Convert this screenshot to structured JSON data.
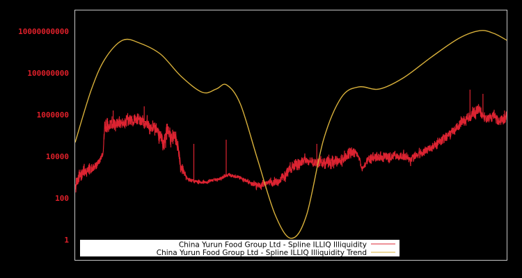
{
  "chart_data": {
    "type": "line",
    "title": "",
    "xlabel": "",
    "ylabel": "",
    "y_scale": "log",
    "ylim": [
      0.1,
      100000000000
    ],
    "grid": false,
    "legend_position": "bottom-left inside plot",
    "background": "#000000",
    "frame_color": "#c8c8c8",
    "tick_color": "#e0202a",
    "y_ticks": [
      {
        "label": "10000000000",
        "value": 10000000000
      },
      {
        "label": "100000000",
        "value": 100000000
      },
      {
        "label": "1000000",
        "value": 1000000
      },
      {
        "label": "10000",
        "value": 10000
      },
      {
        "label": "100",
        "value": 100
      },
      {
        "label": "1",
        "value": 1
      }
    ],
    "x_ticks": [],
    "x_range_fraction": [
      0,
      1
    ],
    "series": [
      {
        "name": "China Yurun Food Group Ltd - Spline ILLIQ Illiquidity",
        "color": "#dc2331",
        "style": "noisy",
        "seed": 7,
        "points_x_frac_log10_noise": [
          [
            0.0,
            2.4,
            0.35
          ],
          [
            0.01,
            3.1,
            0.35
          ],
          [
            0.03,
            3.3,
            0.3
          ],
          [
            0.05,
            3.6,
            0.2
          ],
          [
            0.065,
            4.1,
            0.1
          ],
          [
            0.068,
            5.4,
            0.45
          ],
          [
            0.08,
            5.5,
            0.35
          ],
          [
            0.11,
            5.6,
            0.3
          ],
          [
            0.14,
            5.8,
            0.3
          ],
          [
            0.165,
            5.6,
            0.3
          ],
          [
            0.19,
            5.3,
            0.35
          ],
          [
            0.205,
            4.6,
            0.5
          ],
          [
            0.215,
            5.2,
            0.35
          ],
          [
            0.235,
            4.8,
            0.45
          ],
          [
            0.245,
            3.6,
            0.3
          ],
          [
            0.26,
            2.9,
            0.1
          ],
          [
            0.28,
            2.8,
            0.08
          ],
          [
            0.3,
            2.75,
            0.1
          ],
          [
            0.33,
            2.9,
            0.1
          ],
          [
            0.355,
            3.1,
            0.1
          ],
          [
            0.38,
            3.0,
            0.1
          ],
          [
            0.4,
            2.8,
            0.12
          ],
          [
            0.42,
            2.6,
            0.18
          ],
          [
            0.44,
            2.7,
            0.22
          ],
          [
            0.47,
            2.8,
            0.22
          ],
          [
            0.49,
            3.2,
            0.3
          ],
          [
            0.51,
            3.6,
            0.28
          ],
          [
            0.53,
            3.8,
            0.25
          ],
          [
            0.56,
            3.7,
            0.3
          ],
          [
            0.59,
            3.7,
            0.3
          ],
          [
            0.62,
            3.9,
            0.28
          ],
          [
            0.64,
            4.2,
            0.3
          ],
          [
            0.655,
            4.1,
            0.2
          ],
          [
            0.665,
            3.4,
            0.12
          ],
          [
            0.68,
            3.9,
            0.25
          ],
          [
            0.72,
            4.0,
            0.25
          ],
          [
            0.75,
            4.0,
            0.25
          ],
          [
            0.78,
            3.9,
            0.25
          ],
          [
            0.81,
            4.2,
            0.25
          ],
          [
            0.84,
            4.6,
            0.28
          ],
          [
            0.87,
            5.1,
            0.28
          ],
          [
            0.9,
            5.7,
            0.28
          ],
          [
            0.92,
            6.0,
            0.3
          ],
          [
            0.935,
            6.3,
            0.35
          ],
          [
            0.95,
            5.8,
            0.25
          ],
          [
            0.97,
            5.9,
            0.3
          ],
          [
            0.985,
            5.6,
            0.25
          ],
          [
            1.0,
            5.9,
            0.3
          ]
        ],
        "spikes_x_frac_log10": [
          [
            0.088,
            6.2
          ],
          [
            0.16,
            6.4
          ],
          [
            0.275,
            4.6
          ],
          [
            0.35,
            4.8
          ],
          [
            0.56,
            4.6
          ],
          [
            0.915,
            7.2
          ],
          [
            0.945,
            7.0
          ],
          [
            0.995,
            6.2
          ]
        ]
      },
      {
        "name": "China Yurun Food Group Ltd - Spline ILLIQ Illiquidity Trend",
        "color": "#d9b13b",
        "style": "smooth",
        "points_x_frac_log10": [
          [
            0.0,
            4.67
          ],
          [
            0.037,
            7.17
          ],
          [
            0.069,
            8.67
          ],
          [
            0.11,
            9.57
          ],
          [
            0.15,
            9.43
          ],
          [
            0.198,
            8.9
          ],
          [
            0.246,
            7.83
          ],
          [
            0.295,
            7.07
          ],
          [
            0.327,
            7.23
          ],
          [
            0.351,
            7.43
          ],
          [
            0.383,
            6.5
          ],
          [
            0.423,
            3.83
          ],
          [
            0.464,
            1.17
          ],
          [
            0.501,
            0.07
          ],
          [
            0.536,
            1.17
          ],
          [
            0.576,
            4.83
          ],
          [
            0.617,
            6.83
          ],
          [
            0.657,
            7.33
          ],
          [
            0.705,
            7.23
          ],
          [
            0.761,
            7.77
          ],
          [
            0.826,
            8.77
          ],
          [
            0.89,
            9.67
          ],
          [
            0.938,
            10.03
          ],
          [
            0.97,
            9.9
          ],
          [
            1.0,
            9.57
          ]
        ]
      }
    ],
    "legend": [
      {
        "label": "China Yurun Food Group Ltd - Spline ILLIQ Illiquidity",
        "color": "#dc2331"
      },
      {
        "label": "China Yurun Food Group Ltd - Spline ILLIQ Illiquidity Trend",
        "color": "#d9b13b"
      }
    ]
  }
}
